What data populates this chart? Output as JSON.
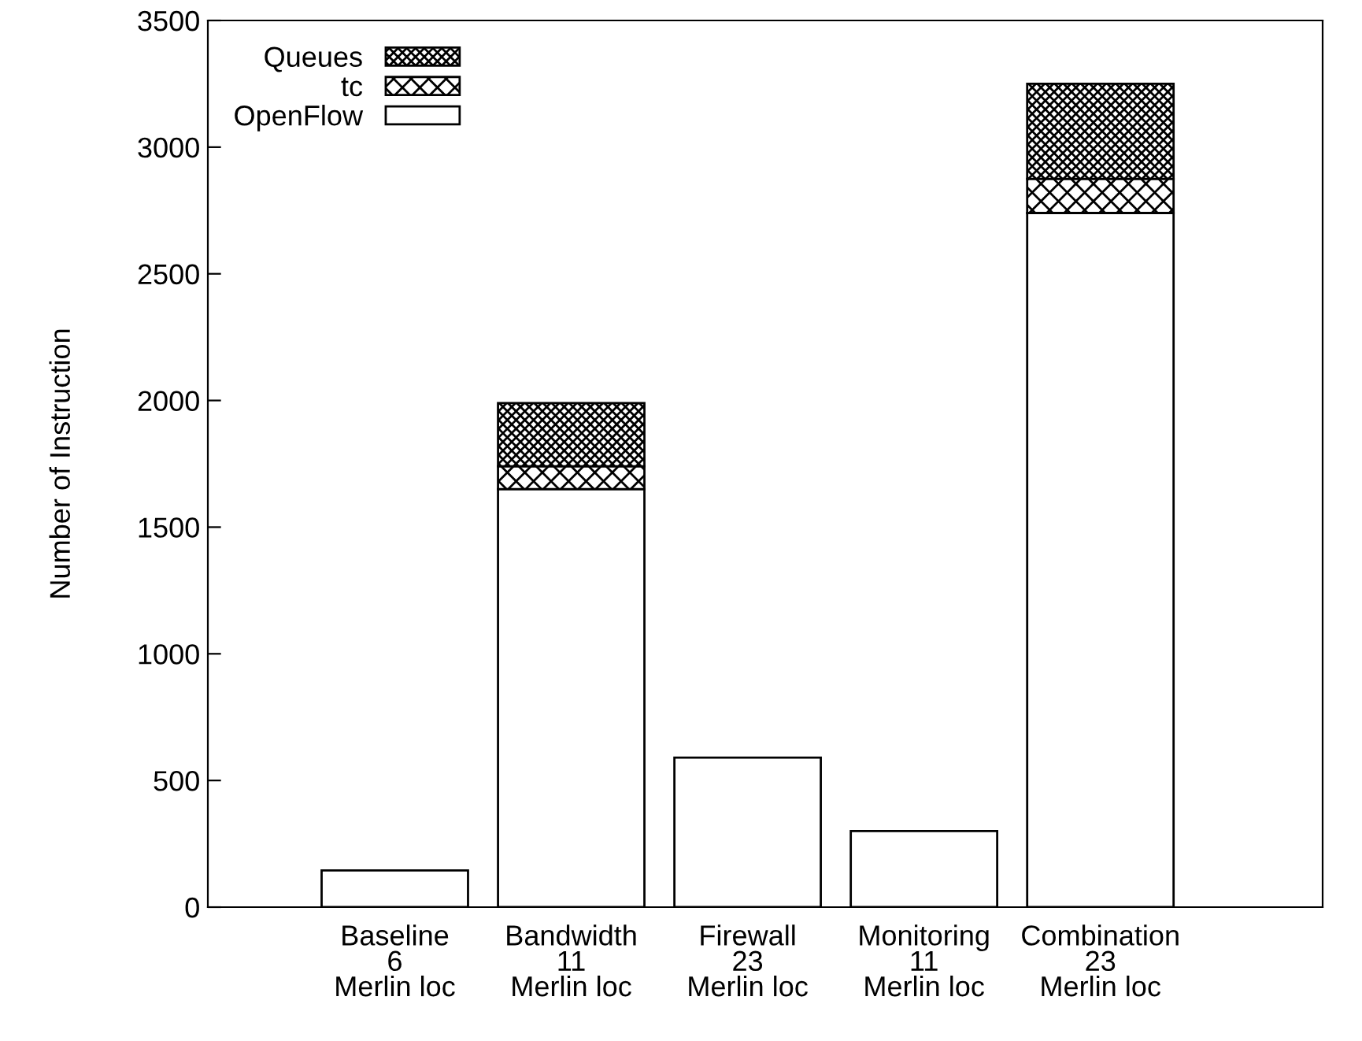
{
  "chart_data": {
    "type": "bar",
    "ylabel": "Number of Instruction",
    "stacked": true,
    "categories": [
      "Baseline\n6\nMerlin loc",
      "Bandwidth\n11\nMerlin loc",
      "Firewall\n23\nMerlin loc",
      "Monitoring\n11\nMerlin loc",
      "Combination\n23\nMerlin loc"
    ],
    "series": [
      {
        "name": "OpenFlow",
        "color": "#ffffff",
        "values": [
          145,
          1650,
          590,
          300,
          2740
        ]
      },
      {
        "name": "tc",
        "color": "#000000",
        "values": [
          null,
          90,
          null,
          null,
          135
        ]
      },
      {
        "name": "Queues",
        "color": "#000000",
        "values": [
          null,
          250,
          null,
          null,
          375
        ]
      }
    ],
    "ylim": [
      0,
      3500
    ],
    "yticks": [
      0,
      500,
      1000,
      1500,
      2000,
      2500,
      3000,
      3500
    ],
    "grid": false,
    "legend": "top left"
  }
}
